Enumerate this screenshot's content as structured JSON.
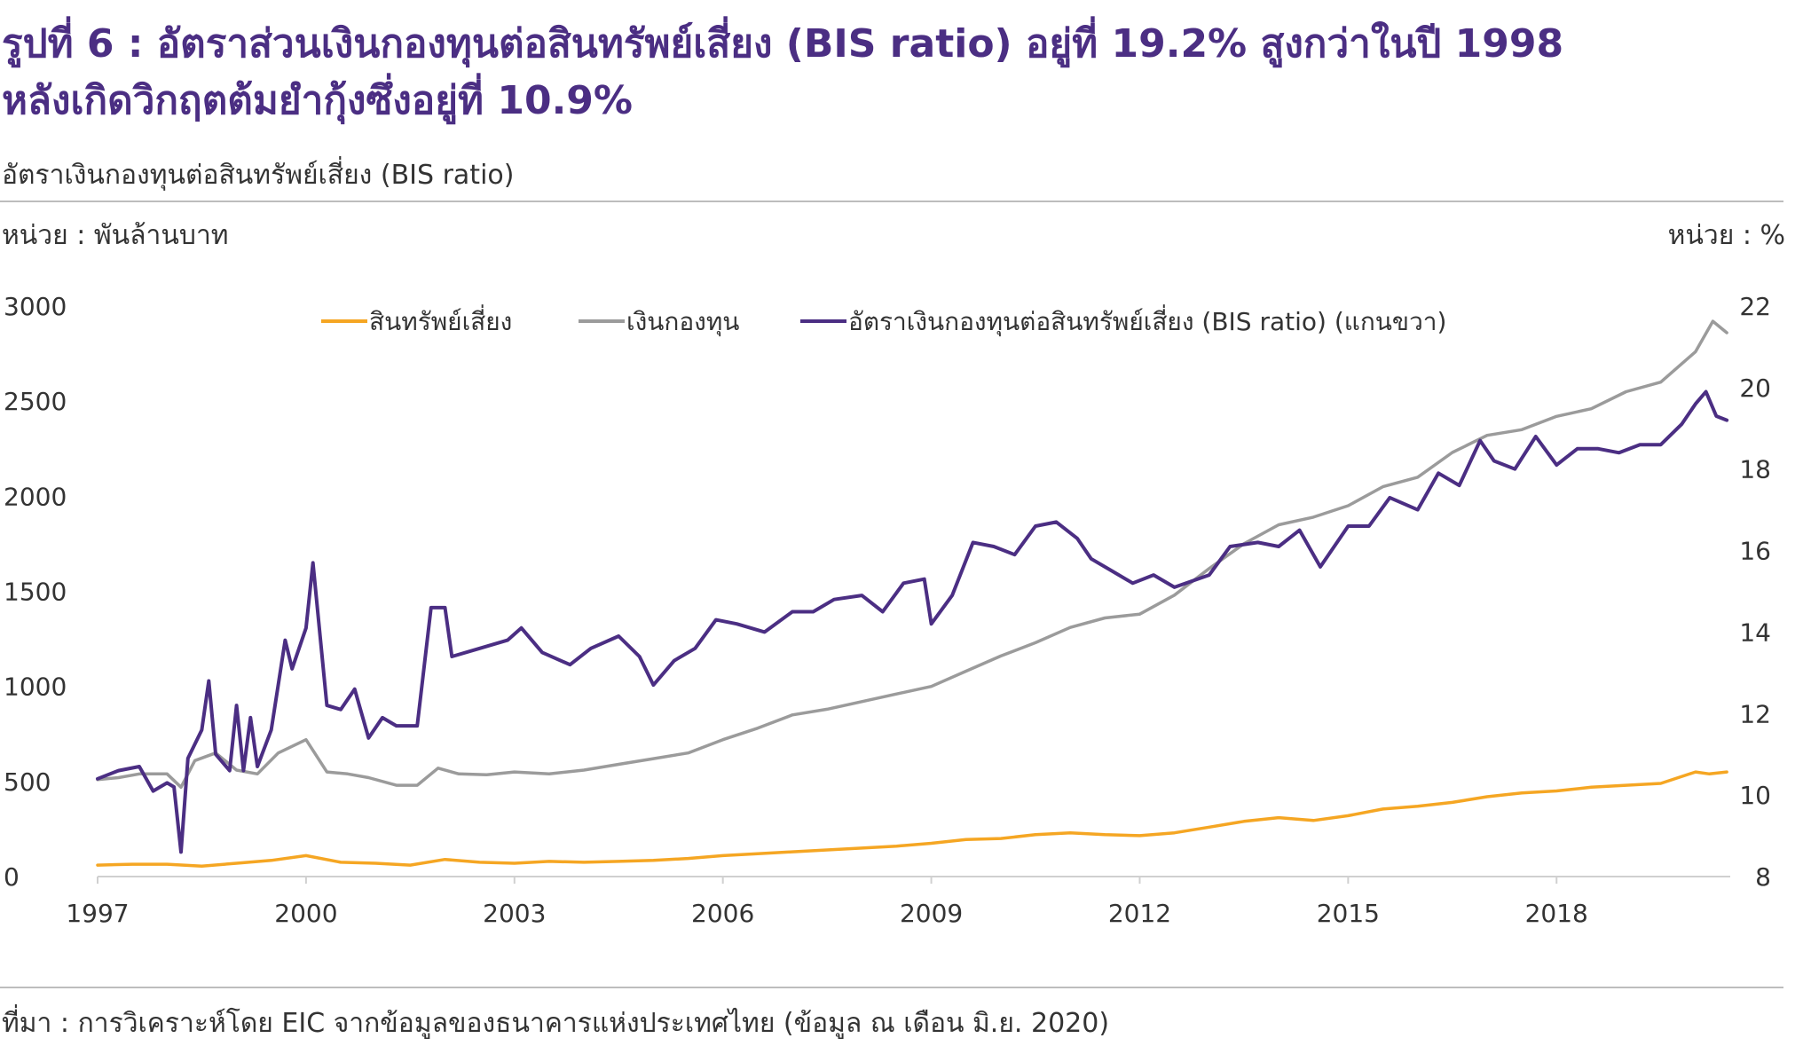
{
  "header": {
    "title_line1": "รูปที่ 6 : อัตราส่วนเงินกองทุนต่อสินทรัพย์เสี่ยง (BIS ratio) อยู่ที่ 19.2% สูงกว่าในปี 1998",
    "title_line2": "หลังเกิดวิกฤตต้มยำกุ้งซึ่งอยู่ที่ 10.9%",
    "subtitle": "อัตราเงินกองทุนต่อสินทรัพย์เสี่ยง (BIS ratio)",
    "unit_left": "หน่วย : พันล้านบาท",
    "unit_right": "หน่วย : %"
  },
  "footer": {
    "source": "ที่มา : การวิเคราะห์โดย EIC จากข้อมูลของธนาคารแห่งประเทศไทย (ข้อมูล ณ เดือน มิ.ย. 2020)"
  },
  "chart_data": {
    "type": "line",
    "x_ticks": [
      "1997",
      "2000",
      "2003",
      "2006",
      "2009",
      "2012",
      "2015",
      "2018"
    ],
    "x_range": [
      1997.0,
      2020.5
    ],
    "y_left_ticks": [
      "0",
      "500",
      "1000",
      "1500",
      "2000",
      "2500",
      "3000"
    ],
    "y_left_range": [
      0,
      3000
    ],
    "y_right_ticks": [
      "8",
      "10",
      "12",
      "14",
      "16",
      "18",
      "20",
      "22"
    ],
    "y_right_range": [
      8,
      22
    ],
    "grid": false,
    "legend_position": "top",
    "series": [
      {
        "name": "สินทรัพย์เสี่ยง",
        "axis": "left",
        "color": "#f5a623",
        "points": [
          [
            1997.0,
            60
          ],
          [
            1997.5,
            65
          ],
          [
            1998.0,
            65
          ],
          [
            1998.5,
            55
          ],
          [
            1999.0,
            70
          ],
          [
            1999.5,
            85
          ],
          [
            2000.0,
            110
          ],
          [
            2000.5,
            75
          ],
          [
            2001.0,
            70
          ],
          [
            2001.5,
            60
          ],
          [
            2002.0,
            90
          ],
          [
            2002.5,
            75
          ],
          [
            2003.0,
            70
          ],
          [
            2003.5,
            80
          ],
          [
            2004.0,
            75
          ],
          [
            2004.5,
            80
          ],
          [
            2005.0,
            85
          ],
          [
            2005.5,
            95
          ],
          [
            2006.0,
            110
          ],
          [
            2006.5,
            120
          ],
          [
            2007.0,
            130
          ],
          [
            2007.5,
            140
          ],
          [
            2008.0,
            150
          ],
          [
            2008.5,
            160
          ],
          [
            2009.0,
            175
          ],
          [
            2009.5,
            195
          ],
          [
            2010.0,
            200
          ],
          [
            2010.5,
            220
          ],
          [
            2011.0,
            230
          ],
          [
            2011.5,
            220
          ],
          [
            2012.0,
            215
          ],
          [
            2012.5,
            230
          ],
          [
            2013.0,
            260
          ],
          [
            2013.5,
            290
          ],
          [
            2014.0,
            310
          ],
          [
            2014.5,
            295
          ],
          [
            2015.0,
            320
          ],
          [
            2015.5,
            355
          ],
          [
            2016.0,
            370
          ],
          [
            2016.5,
            390
          ],
          [
            2017.0,
            420
          ],
          [
            2017.5,
            440
          ],
          [
            2018.0,
            450
          ],
          [
            2018.5,
            470
          ],
          [
            2019.0,
            480
          ],
          [
            2019.5,
            490
          ],
          [
            2020.0,
            550
          ],
          [
            2020.2,
            540
          ],
          [
            2020.45,
            550
          ]
        ]
      },
      {
        "name": "เงินกองทุน",
        "axis": "left",
        "color": "#9b9b9b",
        "points": [
          [
            1997.0,
            510
          ],
          [
            1997.3,
            520
          ],
          [
            1997.6,
            540
          ],
          [
            1998.0,
            540
          ],
          [
            1998.2,
            470
          ],
          [
            1998.4,
            610
          ],
          [
            1998.7,
            650
          ],
          [
            1999.0,
            560
          ],
          [
            1999.3,
            540
          ],
          [
            1999.6,
            650
          ],
          [
            2000.0,
            720
          ],
          [
            2000.3,
            550
          ],
          [
            2000.6,
            540
          ],
          [
            2000.9,
            520
          ],
          [
            2001.3,
            480
          ],
          [
            2001.6,
            480
          ],
          [
            2001.9,
            570
          ],
          [
            2002.2,
            540
          ],
          [
            2002.6,
            535
          ],
          [
            2003.0,
            550
          ],
          [
            2003.5,
            540
          ],
          [
            2004.0,
            560
          ],
          [
            2004.5,
            590
          ],
          [
            2005.0,
            620
          ],
          [
            2005.5,
            650
          ],
          [
            2006.0,
            720
          ],
          [
            2006.5,
            780
          ],
          [
            2007.0,
            850
          ],
          [
            2007.5,
            880
          ],
          [
            2008.0,
            920
          ],
          [
            2008.5,
            960
          ],
          [
            2009.0,
            1000
          ],
          [
            2009.5,
            1080
          ],
          [
            2010.0,
            1160
          ],
          [
            2010.5,
            1230
          ],
          [
            2011.0,
            1310
          ],
          [
            2011.5,
            1360
          ],
          [
            2012.0,
            1380
          ],
          [
            2012.5,
            1480
          ],
          [
            2013.0,
            1620
          ],
          [
            2013.5,
            1750
          ],
          [
            2014.0,
            1850
          ],
          [
            2014.5,
            1890
          ],
          [
            2015.0,
            1950
          ],
          [
            2015.5,
            2050
          ],
          [
            2016.0,
            2100
          ],
          [
            2016.5,
            2230
          ],
          [
            2017.0,
            2320
          ],
          [
            2017.5,
            2350
          ],
          [
            2018.0,
            2420
          ],
          [
            2018.5,
            2460
          ],
          [
            2019.0,
            2550
          ],
          [
            2019.5,
            2600
          ],
          [
            2020.0,
            2760
          ],
          [
            2020.25,
            2920
          ],
          [
            2020.45,
            2860
          ]
        ]
      },
      {
        "name": "อัตราเงินกองทุนต่อสินทรัพย์เสี่ยง (BIS ratio) (แกนขวา)",
        "axis": "right",
        "color": "#4b2e83",
        "points": [
          [
            1997.0,
            10.4
          ],
          [
            1997.3,
            10.6
          ],
          [
            1997.6,
            10.7
          ],
          [
            1997.8,
            10.1
          ],
          [
            1998.0,
            10.3
          ],
          [
            1998.1,
            10.2
          ],
          [
            1998.2,
            8.6
          ],
          [
            1998.3,
            10.9
          ],
          [
            1998.5,
            11.6
          ],
          [
            1998.6,
            12.8
          ],
          [
            1998.7,
            11.0
          ],
          [
            1998.9,
            10.6
          ],
          [
            1999.0,
            12.2
          ],
          [
            1999.1,
            10.6
          ],
          [
            1999.2,
            11.9
          ],
          [
            1999.3,
            10.7
          ],
          [
            1999.5,
            11.6
          ],
          [
            1999.7,
            13.8
          ],
          [
            1999.8,
            13.1
          ],
          [
            2000.0,
            14.1
          ],
          [
            2000.1,
            15.7
          ],
          [
            2000.3,
            12.2
          ],
          [
            2000.5,
            12.1
          ],
          [
            2000.7,
            12.6
          ],
          [
            2000.9,
            11.4
          ],
          [
            2001.1,
            11.9
          ],
          [
            2001.3,
            11.7
          ],
          [
            2001.6,
            11.7
          ],
          [
            2001.8,
            14.6
          ],
          [
            2002.0,
            14.6
          ],
          [
            2002.1,
            13.4
          ],
          [
            2002.5,
            13.6
          ],
          [
            2002.9,
            13.8
          ],
          [
            2003.1,
            14.1
          ],
          [
            2003.4,
            13.5
          ],
          [
            2003.8,
            13.2
          ],
          [
            2004.1,
            13.6
          ],
          [
            2004.5,
            13.9
          ],
          [
            2004.8,
            13.4
          ],
          [
            2005.0,
            12.7
          ],
          [
            2005.3,
            13.3
          ],
          [
            2005.6,
            13.6
          ],
          [
            2005.9,
            14.3
          ],
          [
            2006.2,
            14.2
          ],
          [
            2006.6,
            14.0
          ],
          [
            2007.0,
            14.5
          ],
          [
            2007.3,
            14.5
          ],
          [
            2007.6,
            14.8
          ],
          [
            2008.0,
            14.9
          ],
          [
            2008.3,
            14.5
          ],
          [
            2008.6,
            15.2
          ],
          [
            2008.9,
            15.3
          ],
          [
            2009.0,
            14.2
          ],
          [
            2009.3,
            14.9
          ],
          [
            2009.6,
            16.2
          ],
          [
            2009.9,
            16.1
          ],
          [
            2010.2,
            15.9
          ],
          [
            2010.5,
            16.6
          ],
          [
            2010.8,
            16.7
          ],
          [
            2011.1,
            16.3
          ],
          [
            2011.3,
            15.8
          ],
          [
            2011.6,
            15.5
          ],
          [
            2011.9,
            15.2
          ],
          [
            2012.2,
            15.4
          ],
          [
            2012.5,
            15.1
          ],
          [
            2013.0,
            15.4
          ],
          [
            2013.3,
            16.1
          ],
          [
            2013.7,
            16.2
          ],
          [
            2014.0,
            16.1
          ],
          [
            2014.3,
            16.5
          ],
          [
            2014.6,
            15.6
          ],
          [
            2015.0,
            16.6
          ],
          [
            2015.3,
            16.6
          ],
          [
            2015.6,
            17.3
          ],
          [
            2016.0,
            17.0
          ],
          [
            2016.3,
            17.9
          ],
          [
            2016.6,
            17.6
          ],
          [
            2016.9,
            18.7
          ],
          [
            2017.1,
            18.2
          ],
          [
            2017.4,
            18.0
          ],
          [
            2017.7,
            18.8
          ],
          [
            2018.0,
            18.1
          ],
          [
            2018.3,
            18.5
          ],
          [
            2018.6,
            18.5
          ],
          [
            2018.9,
            18.4
          ],
          [
            2019.2,
            18.6
          ],
          [
            2019.5,
            18.6
          ],
          [
            2019.8,
            19.1
          ],
          [
            2020.0,
            19.6
          ],
          [
            2020.15,
            19.9
          ],
          [
            2020.3,
            19.3
          ],
          [
            2020.45,
            19.2
          ]
        ]
      }
    ]
  }
}
